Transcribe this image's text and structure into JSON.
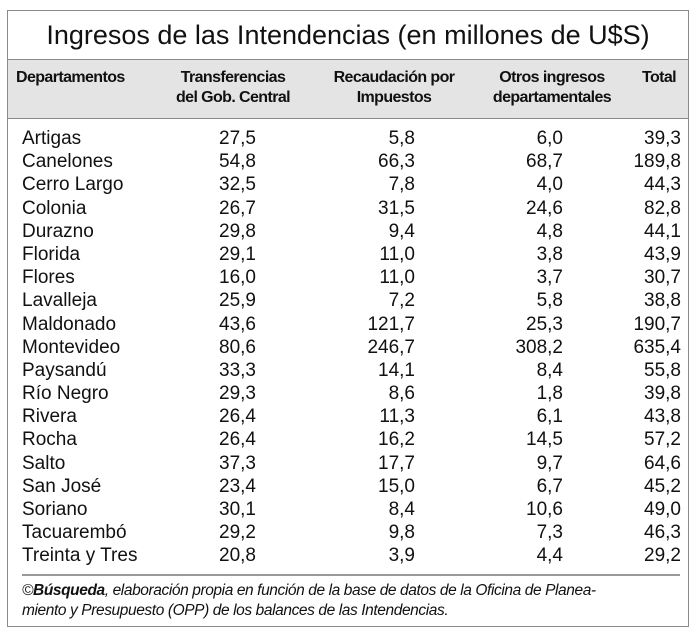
{
  "title": "Ingresos de las Intendencias (en millones de U$S)",
  "table": {
    "headers": [
      "Departamentos",
      "Transferencias del Gob. Central",
      "Recaudación por Impuestos",
      "Otros ingresos departamentales",
      "Total"
    ],
    "header_lines": [
      [
        "Departamentos"
      ],
      [
        "Transferencias",
        "del Gob. Central"
      ],
      [
        "Recaudación por",
        "Impuestos"
      ],
      [
        "Otros ingresos",
        "departamentales"
      ],
      [
        "Total"
      ]
    ],
    "rows": [
      [
        "Artigas",
        "27,5",
        "5,8",
        "6,0",
        "39,3"
      ],
      [
        "Canelones",
        "54,8",
        "66,3",
        "68,7",
        "189,8"
      ],
      [
        "Cerro Largo",
        "32,5",
        "7,8",
        "4,0",
        "44,3"
      ],
      [
        "Colonia",
        "26,7",
        "31,5",
        "24,6",
        "82,8"
      ],
      [
        "Durazno",
        "29,8",
        "9,4",
        "4,8",
        "44,1"
      ],
      [
        "Florida",
        "29,1",
        "11,0",
        "3,8",
        "43,9"
      ],
      [
        "Flores",
        "16,0",
        "11,0",
        "3,7",
        "30,7"
      ],
      [
        "Lavalleja",
        "25,9",
        "7,2",
        "5,8",
        "38,8"
      ],
      [
        "Maldonado",
        "43,6",
        "121,7",
        "25,3",
        "190,7"
      ],
      [
        "Montevideo",
        "80,6",
        "246,7",
        "308,2",
        "635,4"
      ],
      [
        "Paysandú",
        "33,3",
        "14,1",
        "8,4",
        "55,8"
      ],
      [
        "Río Negro",
        "29,3",
        "8,6",
        "1,8",
        "39,8"
      ],
      [
        "Rivera",
        "26,4",
        "11,3",
        "6,1",
        "43,8"
      ],
      [
        "Rocha",
        "26,4",
        "16,2",
        "14,5",
        "57,2"
      ],
      [
        "Salto",
        "37,3",
        "17,7",
        "9,7",
        "64,6"
      ],
      [
        "San José",
        "23,4",
        "15,0",
        "6,7",
        "45,2"
      ],
      [
        "Soriano",
        "30,1",
        "8,4",
        "10,6",
        "49,0"
      ],
      [
        "Tacuarembó",
        "29,2",
        "9,8",
        "7,3",
        "46,3"
      ],
      [
        "Treinta y Tres",
        "20,8",
        "3,9",
        "4,4",
        "29,2"
      ]
    ]
  },
  "footer": {
    "copyright": "©",
    "source_name": "Búsqueda",
    "text": ", elaboración propia en función de la base de datos de la Oficina de Planea-",
    "text2": "miento y  Presupuesto (OPP) de los balances de las Intendencias."
  }
}
